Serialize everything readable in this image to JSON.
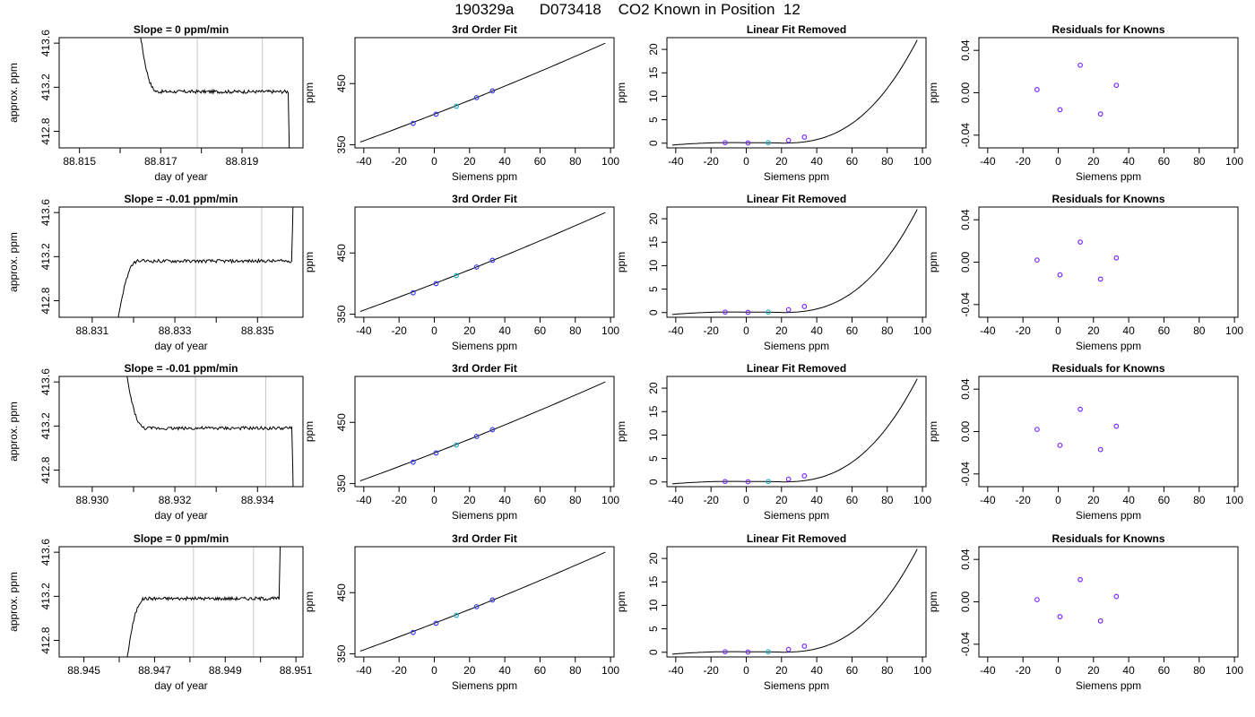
{
  "suptitle": "190329a      D073418    CO2 Known in Position  12",
  "colors": {
    "residual_point": "#7b2cff",
    "fit_point": "#3b3bff",
    "highlight_point": "#20b0c0",
    "guide_line": "#c8c8c8",
    "curve": "#000000"
  },
  "chart_data": [
    {
      "type": "line",
      "title": "Slope =  0  ppm/min",
      "xlabel": "day of year",
      "ylabel": "approx. ppm",
      "xticks": [
        "88.815",
        "88.817",
        "88.819"
      ],
      "xtick_values": [
        88.815,
        88.817,
        88.819
      ],
      "xlim": [
        88.8145,
        88.8205
      ],
      "yticks": [
        "412.8",
        "413.2",
        "413.6"
      ],
      "ytick_values": [
        412.8,
        413.2,
        413.6
      ],
      "ylim": [
        412.65,
        413.65
      ],
      "trace": {
        "start": 88.8163,
        "end": 88.8202,
        "enter": "top",
        "exit": "bottom",
        "plateau": 413.16
      },
      "vlines": [
        88.8179,
        88.8195
      ]
    },
    {
      "type": "line",
      "title": "3rd Order Fit",
      "xlabel": "Siemens ppm",
      "ylabel": "ppm",
      "xticks": [
        "-40",
        "-20",
        "0",
        "20",
        "40",
        "60",
        "80",
        "100"
      ],
      "xtick_values": [
        -40,
        -20,
        0,
        20,
        40,
        60,
        80,
        100
      ],
      "xlim": [
        -45,
        102
      ],
      "yticks": [
        "350",
        "450"
      ],
      "ytick_values": [
        350,
        450
      ],
      "ylim": [
        345,
        525
      ],
      "curve": {
        "x0": -42,
        "x1": 97,
        "y0": 354.5,
        "y1": 516
      },
      "points": [
        {
          "x": -12,
          "y": 385
        },
        {
          "x": 1,
          "y": 400
        },
        {
          "x": 12.5,
          "y": 413
        },
        {
          "x": 24,
          "y": 427
        },
        {
          "x": 33,
          "y": 438
        }
      ]
    },
    {
      "type": "line",
      "title": "Linear Fit Removed",
      "xlabel": "Siemens ppm",
      "ylabel": "ppm",
      "xticks": [
        "-40",
        "-20",
        "0",
        "20",
        "40",
        "60",
        "80",
        "100"
      ],
      "xtick_values": [
        -40,
        -20,
        0,
        20,
        40,
        60,
        80,
        100
      ],
      "xlim": [
        -45,
        102
      ],
      "yticks": [
        "0",
        "5",
        "10",
        "15",
        "20"
      ],
      "ytick_values": [
        0,
        5,
        10,
        15,
        20
      ],
      "ylim": [
        -1,
        22.5
      ],
      "curve": {
        "x0": -42,
        "x1": 97
      },
      "points": [
        {
          "x": -12,
          "y": 0.1
        },
        {
          "x": 1,
          "y": 0.05
        },
        {
          "x": 12.5,
          "y": 0.1
        },
        {
          "x": 24,
          "y": 0.6
        },
        {
          "x": 33,
          "y": 1.3
        }
      ]
    },
    {
      "type": "scatter",
      "title": "Residuals for Knowns",
      "xlabel": "Siemens ppm",
      "ylabel": "ppm",
      "xticks": [
        "-40",
        "-20",
        "0",
        "20",
        "40",
        "60",
        "80",
        "100"
      ],
      "xtick_values": [
        -40,
        -20,
        0,
        20,
        40,
        60,
        80,
        100
      ],
      "xlim": [
        -45,
        102
      ],
      "yticks": [
        "-0.04",
        "0.00",
        "0.04"
      ],
      "ytick_values": [
        -0.04,
        0,
        0.04
      ],
      "ylim": [
        -0.052,
        0.052
      ],
      "points": [
        {
          "x": -12,
          "y": 0.003
        },
        {
          "x": 1,
          "y": -0.016
        },
        {
          "x": 12.5,
          "y": 0.026
        },
        {
          "x": 24,
          "y": -0.02
        },
        {
          "x": 33,
          "y": 0.007
        }
      ]
    },
    {
      "type": "line",
      "title": "Slope =  -0.01  ppm/min",
      "xlabel": "day of year",
      "ylabel": "approx. ppm",
      "xticks": [
        "88.831",
        "88.833",
        "88.835"
      ],
      "xtick_values": [
        88.831,
        88.833,
        88.835
      ],
      "xlim": [
        88.8302,
        88.8361
      ],
      "yticks": [
        "412.8",
        "413.2",
        "413.6"
      ],
      "ytick_values": [
        412.8,
        413.2,
        413.6
      ],
      "ylim": [
        412.65,
        413.65
      ],
      "trace": {
        "start": 88.8314,
        "end": 88.8359,
        "enter": "bottom",
        "exit": "top",
        "plateau": 413.16
      },
      "vlines": [
        88.8335,
        88.8351
      ]
    },
    {
      "type": "line",
      "title": "3rd Order Fit",
      "xlabel": "Siemens ppm",
      "ylabel": "ppm",
      "xticks": [
        "-40",
        "-20",
        "0",
        "20",
        "40",
        "60",
        "80",
        "100"
      ],
      "xtick_values": [
        -40,
        -20,
        0,
        20,
        40,
        60,
        80,
        100
      ],
      "xlim": [
        -45,
        102
      ],
      "yticks": [
        "350",
        "450"
      ],
      "ytick_values": [
        350,
        450
      ],
      "ylim": [
        345,
        525
      ],
      "curve": {
        "x0": -42,
        "x1": 97,
        "y0": 354.5,
        "y1": 516
      },
      "points": [
        {
          "x": -12,
          "y": 385
        },
        {
          "x": 1,
          "y": 400
        },
        {
          "x": 12.5,
          "y": 413
        },
        {
          "x": 24,
          "y": 427
        },
        {
          "x": 33,
          "y": 438
        }
      ]
    },
    {
      "type": "line",
      "title": "Linear Fit Removed",
      "xlabel": "Siemens ppm",
      "ylabel": "ppm",
      "xticks": [
        "-40",
        "-20",
        "0",
        "20",
        "40",
        "60",
        "80",
        "100"
      ],
      "xtick_values": [
        -40,
        -20,
        0,
        20,
        40,
        60,
        80,
        100
      ],
      "xlim": [
        -45,
        102
      ],
      "yticks": [
        "0",
        "5",
        "10",
        "15",
        "20"
      ],
      "ytick_values": [
        0,
        5,
        10,
        15,
        20
      ],
      "ylim": [
        -1,
        22.5
      ],
      "curve": {
        "x0": -42,
        "x1": 97
      },
      "points": [
        {
          "x": -12,
          "y": 0.1
        },
        {
          "x": 1,
          "y": 0.05
        },
        {
          "x": 12.5,
          "y": 0.1
        },
        {
          "x": 24,
          "y": 0.6
        },
        {
          "x": 33,
          "y": 1.3
        }
      ]
    },
    {
      "type": "scatter",
      "title": "Residuals for Knowns",
      "xlabel": "Siemens ppm",
      "ylabel": "ppm",
      "xticks": [
        "-40",
        "-20",
        "0",
        "20",
        "40",
        "60",
        "80",
        "100"
      ],
      "xtick_values": [
        -40,
        -20,
        0,
        20,
        40,
        60,
        80,
        100
      ],
      "xlim": [
        -45,
        102
      ],
      "yticks": [
        "-0.04",
        "0.00",
        "0.04"
      ],
      "ytick_values": [
        -0.04,
        0,
        0.04
      ],
      "ylim": [
        -0.052,
        0.052
      ],
      "points": [
        {
          "x": -12,
          "y": 0.002
        },
        {
          "x": 1,
          "y": -0.012
        },
        {
          "x": 12.5,
          "y": 0.019
        },
        {
          "x": 24,
          "y": -0.016
        },
        {
          "x": 33,
          "y": 0.004
        }
      ]
    },
    {
      "type": "line",
      "title": "Slope =  -0.01  ppm/min",
      "xlabel": "day of year",
      "ylabel": "approx. ppm",
      "xticks": [
        "88.930",
        "88.932",
        "88.934"
      ],
      "xtick_values": [
        88.93,
        88.932,
        88.934
      ],
      "xlim": [
        88.9292,
        88.9351
      ],
      "yticks": [
        "412.8",
        "413.2",
        "413.6"
      ],
      "ytick_values": [
        412.8,
        413.2,
        413.6
      ],
      "ylim": [
        412.65,
        413.65
      ],
      "trace": {
        "start": 88.9306,
        "end": 88.9349,
        "enter": "top",
        "exit": "bottom",
        "plateau": 413.18
      },
      "vlines": [
        88.9325,
        88.9342
      ]
    },
    {
      "type": "line",
      "title": "3rd Order Fit",
      "xlabel": "Siemens ppm",
      "ylabel": "ppm",
      "xticks": [
        "-40",
        "-20",
        "0",
        "20",
        "40",
        "60",
        "80",
        "100"
      ],
      "xtick_values": [
        -40,
        -20,
        0,
        20,
        40,
        60,
        80,
        100
      ],
      "xlim": [
        -45,
        102
      ],
      "yticks": [
        "350",
        "450"
      ],
      "ytick_values": [
        350,
        450
      ],
      "ylim": [
        345,
        525
      ],
      "curve": {
        "x0": -42,
        "x1": 97,
        "y0": 354.5,
        "y1": 516
      },
      "points": [
        {
          "x": -12,
          "y": 385
        },
        {
          "x": 1,
          "y": 400
        },
        {
          "x": 12.5,
          "y": 413
        },
        {
          "x": 24,
          "y": 427
        },
        {
          "x": 33,
          "y": 438
        }
      ]
    },
    {
      "type": "line",
      "title": "Linear Fit Removed",
      "xlabel": "Siemens ppm",
      "ylabel": "ppm",
      "xticks": [
        "-40",
        "-20",
        "0",
        "20",
        "40",
        "60",
        "80",
        "100"
      ],
      "xtick_values": [
        -40,
        -20,
        0,
        20,
        40,
        60,
        80,
        100
      ],
      "xlim": [
        -45,
        102
      ],
      "yticks": [
        "0",
        "5",
        "10",
        "15",
        "20"
      ],
      "ytick_values": [
        0,
        5,
        10,
        15,
        20
      ],
      "ylim": [
        -1,
        22.5
      ],
      "curve": {
        "x0": -42,
        "x1": 97
      },
      "points": [
        {
          "x": -12,
          "y": 0.1
        },
        {
          "x": 1,
          "y": 0.05
        },
        {
          "x": 12.5,
          "y": 0.1
        },
        {
          "x": 24,
          "y": 0.6
        },
        {
          "x": 33,
          "y": 1.3
        }
      ]
    },
    {
      "type": "scatter",
      "title": "Residuals for Knowns",
      "xlabel": "Siemens ppm",
      "ylabel": "ppm",
      "xticks": [
        "-40",
        "-20",
        "0",
        "20",
        "40",
        "60",
        "80",
        "100"
      ],
      "xtick_values": [
        -40,
        -20,
        0,
        20,
        40,
        60,
        80,
        100
      ],
      "xlim": [
        -45,
        102
      ],
      "yticks": [
        "-0.04",
        "0.00",
        "0.04"
      ],
      "ytick_values": [
        -0.04,
        0,
        0.04
      ],
      "ylim": [
        -0.052,
        0.052
      ],
      "points": [
        {
          "x": -12,
          "y": 0.002
        },
        {
          "x": 1,
          "y": -0.013
        },
        {
          "x": 12.5,
          "y": 0.021
        },
        {
          "x": 24,
          "y": -0.017
        },
        {
          "x": 33,
          "y": 0.005
        }
      ]
    },
    {
      "type": "line",
      "title": "Slope =  0  ppm/min",
      "xlabel": "day of year",
      "ylabel": "approx. ppm",
      "xticks": [
        "88.945",
        "88.947",
        "88.949",
        "88.951"
      ],
      "xtick_values": [
        88.945,
        88.947,
        88.949,
        88.951
      ],
      "xlim": [
        88.9443,
        88.9512
      ],
      "yticks": [
        "412.8",
        "413.2",
        "413.6"
      ],
      "ytick_values": [
        412.8,
        413.2,
        413.6
      ],
      "ylim": [
        412.65,
        413.65
      ],
      "trace": {
        "start": 88.946,
        "end": 88.9506,
        "enter": "bottom",
        "exit": "top",
        "plateau": 413.18
      },
      "vlines": [
        88.9481,
        88.9498
      ]
    },
    {
      "type": "line",
      "title": "3rd Order Fit",
      "xlabel": "Siemens ppm",
      "ylabel": "ppm",
      "xticks": [
        "-40",
        "-20",
        "0",
        "20",
        "40",
        "60",
        "80",
        "100"
      ],
      "xtick_values": [
        -40,
        -20,
        0,
        20,
        40,
        60,
        80,
        100
      ],
      "xlim": [
        -45,
        102
      ],
      "yticks": [
        "350",
        "450"
      ],
      "ytick_values": [
        350,
        450
      ],
      "ylim": [
        345,
        525
      ],
      "curve": {
        "x0": -42,
        "x1": 97,
        "y0": 354.5,
        "y1": 516
      },
      "points": [
        {
          "x": -12,
          "y": 385
        },
        {
          "x": 1,
          "y": 400
        },
        {
          "x": 12.5,
          "y": 413
        },
        {
          "x": 24,
          "y": 427
        },
        {
          "x": 33,
          "y": 438
        }
      ]
    },
    {
      "type": "line",
      "title": "Linear Fit Removed",
      "xlabel": "Siemens ppm",
      "ylabel": "ppm",
      "xticks": [
        "-40",
        "-20",
        "0",
        "20",
        "40",
        "60",
        "80",
        "100"
      ],
      "xtick_values": [
        -40,
        -20,
        0,
        20,
        40,
        60,
        80,
        100
      ],
      "xlim": [
        -45,
        102
      ],
      "yticks": [
        "0",
        "5",
        "10",
        "15",
        "20"
      ],
      "ytick_values": [
        0,
        5,
        10,
        15,
        20
      ],
      "ylim": [
        -1,
        22.5
      ],
      "curve": {
        "x0": -42,
        "x1": 97
      },
      "points": [
        {
          "x": -12,
          "y": 0.1
        },
        {
          "x": 1,
          "y": 0.05
        },
        {
          "x": 12.5,
          "y": 0.1
        },
        {
          "x": 24,
          "y": 0.6
        },
        {
          "x": 33,
          "y": 1.3
        }
      ]
    },
    {
      "type": "scatter",
      "title": "Residuals for Knowns",
      "xlabel": "Siemens ppm",
      "ylabel": "ppm",
      "xticks": [
        "-40",
        "-20",
        "0",
        "20",
        "40",
        "60",
        "80",
        "100"
      ],
      "xtick_values": [
        -40,
        -20,
        0,
        20,
        40,
        60,
        80,
        100
      ],
      "xlim": [
        -45,
        102
      ],
      "yticks": [
        "-0.04",
        "0.00",
        "0.04"
      ],
      "ytick_values": [
        -0.04,
        0,
        0.04
      ],
      "ylim": [
        -0.052,
        0.052
      ],
      "points": [
        {
          "x": -12,
          "y": 0.002
        },
        {
          "x": 1,
          "y": -0.014
        },
        {
          "x": 12.5,
          "y": 0.021
        },
        {
          "x": 24,
          "y": -0.018
        },
        {
          "x": 33,
          "y": 0.005
        }
      ]
    }
  ]
}
